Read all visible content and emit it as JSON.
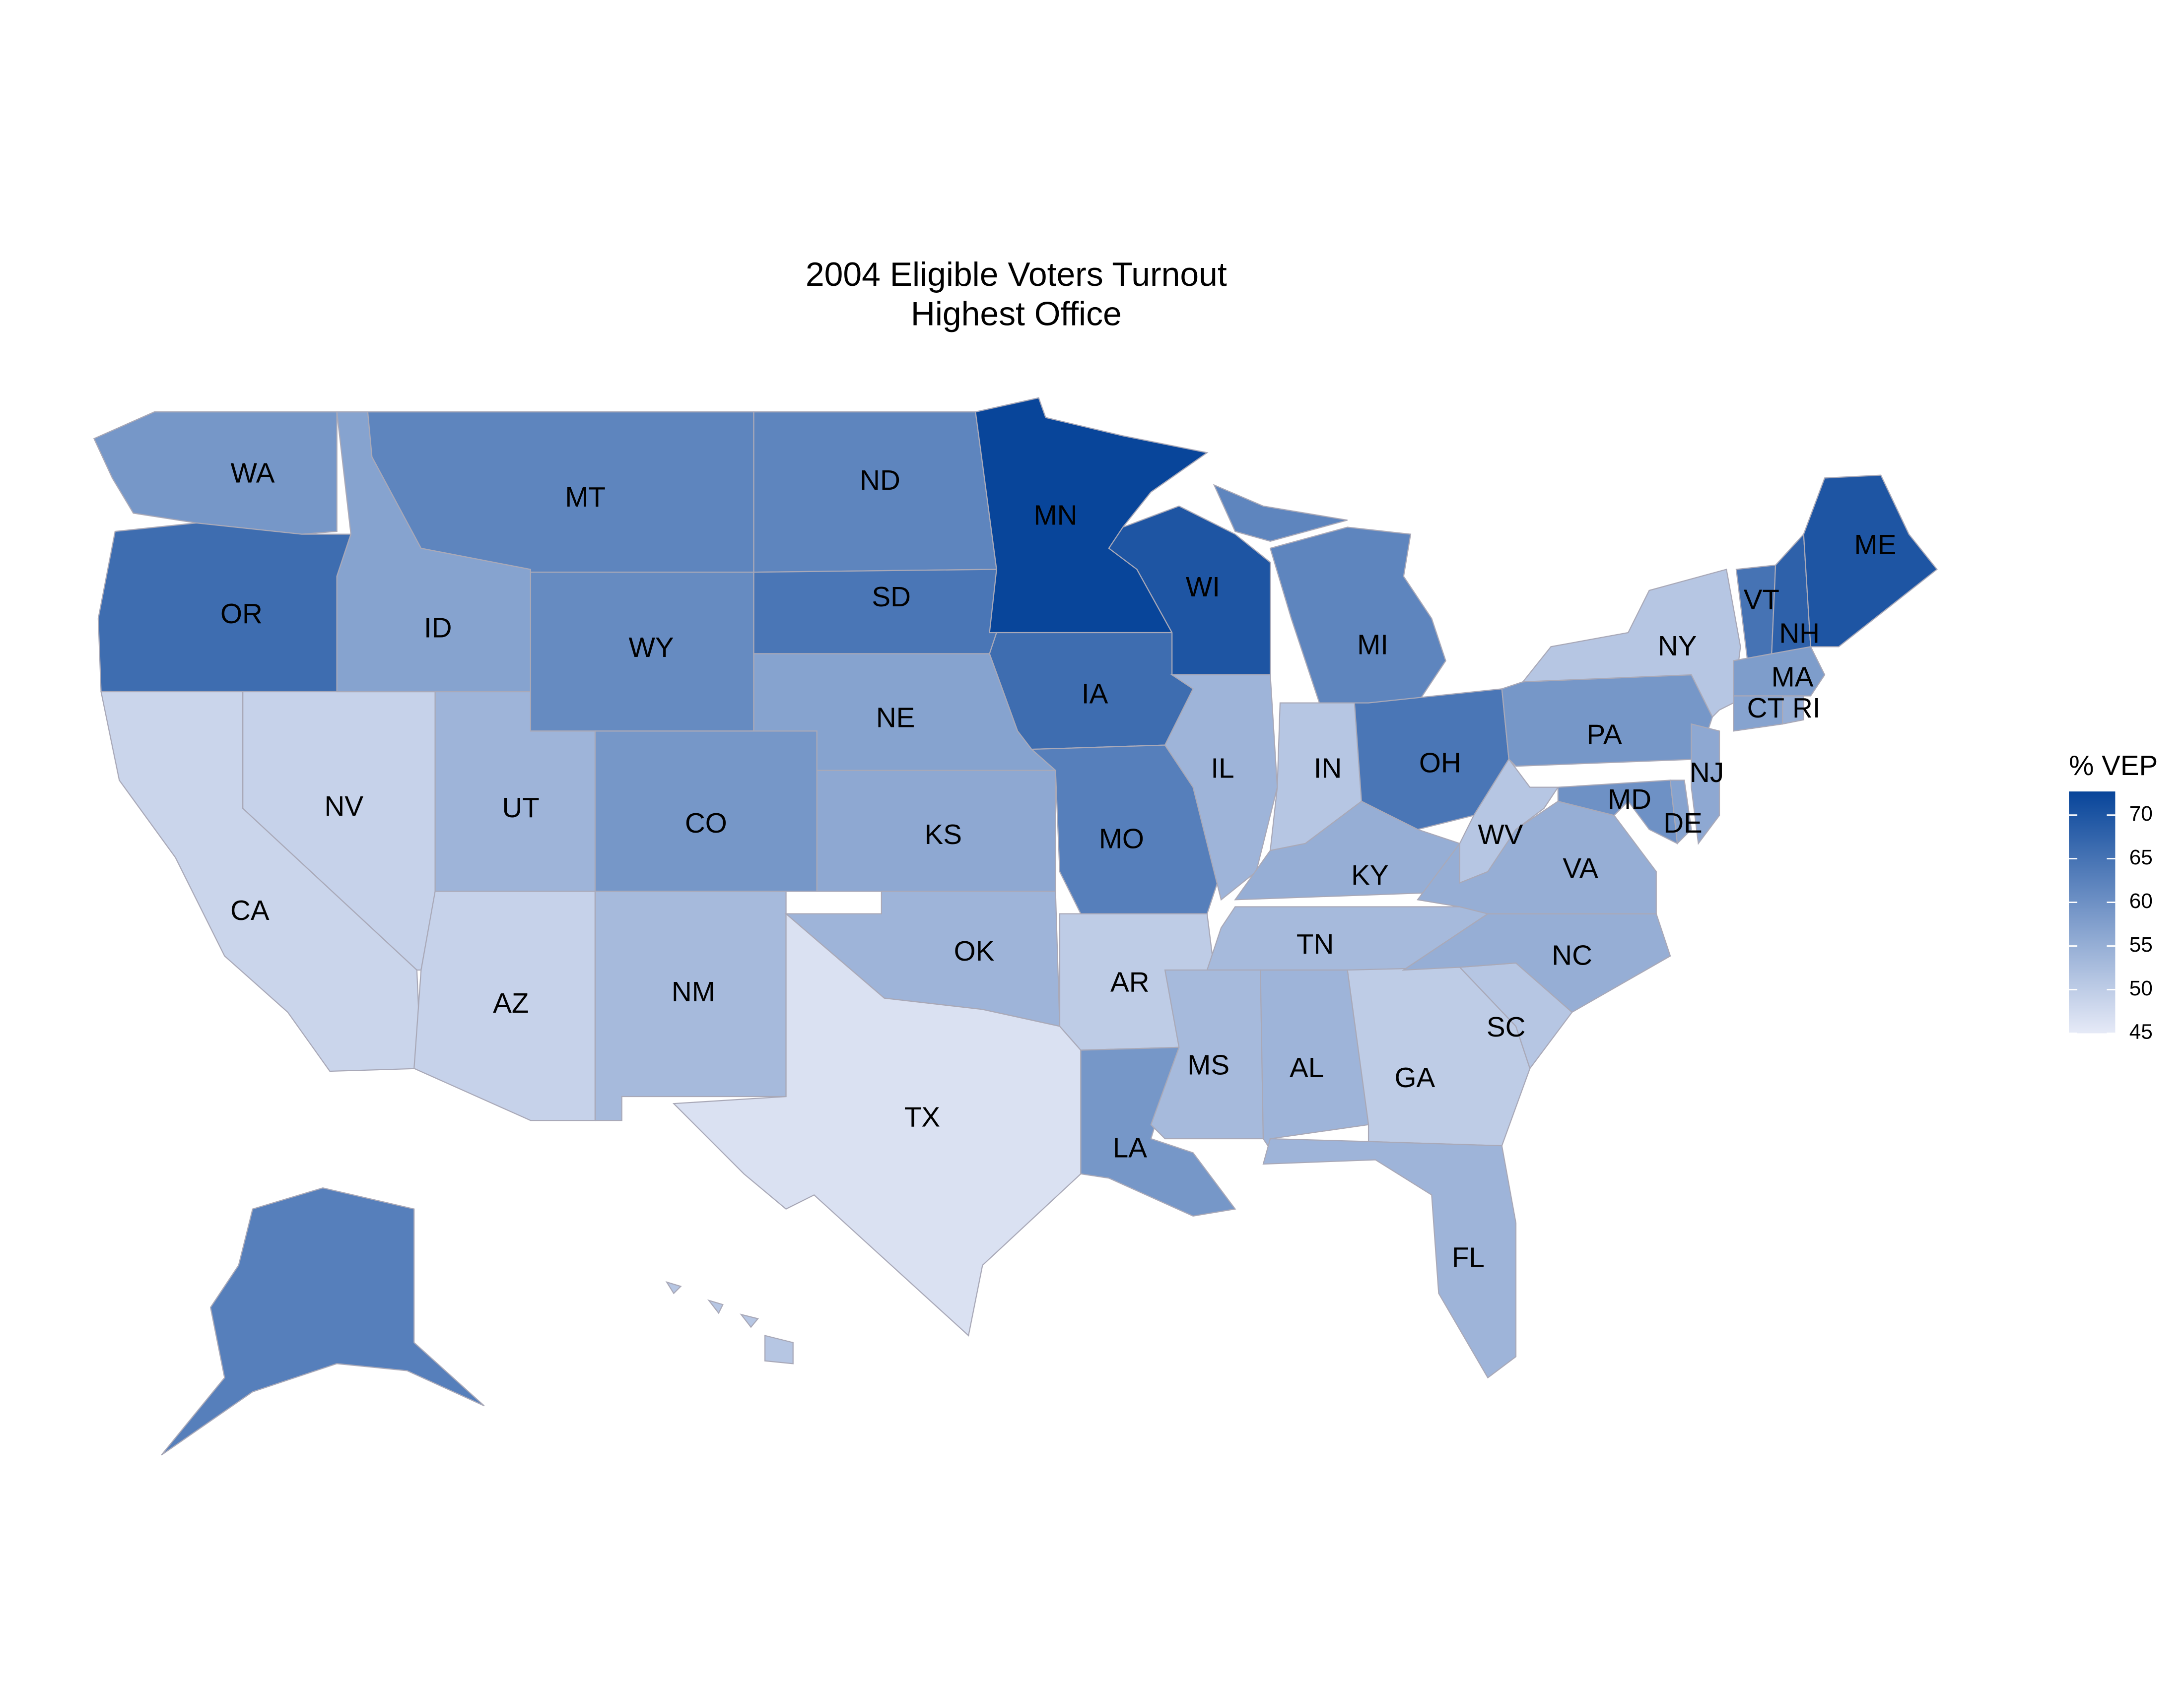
{
  "chart_data": {
    "type": "choropleth",
    "title": "2004 Eligible Voters Turnout",
    "subtitle": "Highest Office",
    "legend_title": "% VEP",
    "low_color": "#e6eaf7",
    "high_color": "#08459a",
    "border_color": "#a9a9b8",
    "clim": [
      45,
      72.7
    ],
    "cticks": [
      45,
      50,
      55,
      60,
      65,
      70
    ],
    "regions": [
      {
        "name": "WA",
        "value": 59
      },
      {
        "name": "OR",
        "value": 66
      },
      {
        "name": "CA",
        "value": 48.5
      },
      {
        "name": "NV",
        "value": 49
      },
      {
        "name": "ID",
        "value": 57
      },
      {
        "name": "MT",
        "value": 62
      },
      {
        "name": "WY",
        "value": 61
      },
      {
        "name": "UT",
        "value": 54
      },
      {
        "name": "AZ",
        "value": 49
      },
      {
        "name": "CO",
        "value": 59
      },
      {
        "name": "NM",
        "value": 53
      },
      {
        "name": "ND",
        "value": 62
      },
      {
        "name": "SD",
        "value": 64.5
      },
      {
        "name": "NE",
        "value": 57
      },
      {
        "name": "KS",
        "value": 56
      },
      {
        "name": "OK",
        "value": 54
      },
      {
        "name": "TX",
        "value": 46.5
      },
      {
        "name": "MN",
        "value": 72.7
      },
      {
        "name": "IA",
        "value": 66
      },
      {
        "name": "MO",
        "value": 63
      },
      {
        "name": "AR",
        "value": 50
      },
      {
        "name": "LA",
        "value": 59
      },
      {
        "name": "WI",
        "value": 70
      },
      {
        "name": "IL",
        "value": 54
      },
      {
        "name": "MI",
        "value": 62
      },
      {
        "name": "IN",
        "value": 51
      },
      {
        "name": "OH",
        "value": 64.5
      },
      {
        "name": "KY",
        "value": 55
      },
      {
        "name": "TN",
        "value": 53
      },
      {
        "name": "MS",
        "value": 53
      },
      {
        "name": "AL",
        "value": 54
      },
      {
        "name": "GA",
        "value": 50
      },
      {
        "name": "FL",
        "value": 54
      },
      {
        "name": "SC",
        "value": 51
      },
      {
        "name": "NC",
        "value": 55
      },
      {
        "name": "VA",
        "value": 55
      },
      {
        "name": "WV",
        "value": 51
      },
      {
        "name": "PA",
        "value": 59
      },
      {
        "name": "NY",
        "value": 51
      },
      {
        "name": "MD",
        "value": 60
      },
      {
        "name": "DE",
        "value": 57
      },
      {
        "name": "NJ",
        "value": 56
      },
      {
        "name": "VT",
        "value": 65
      },
      {
        "name": "NH",
        "value": 68
      },
      {
        "name": "ME",
        "value": 70
      },
      {
        "name": "MA",
        "value": 58
      },
      {
        "name": "CT",
        "value": 57
      },
      {
        "name": "RI",
        "value": 55
      },
      {
        "name": null,
        "value": 63
      },
      {
        "name": null,
        "value": 51
      }
    ]
  }
}
